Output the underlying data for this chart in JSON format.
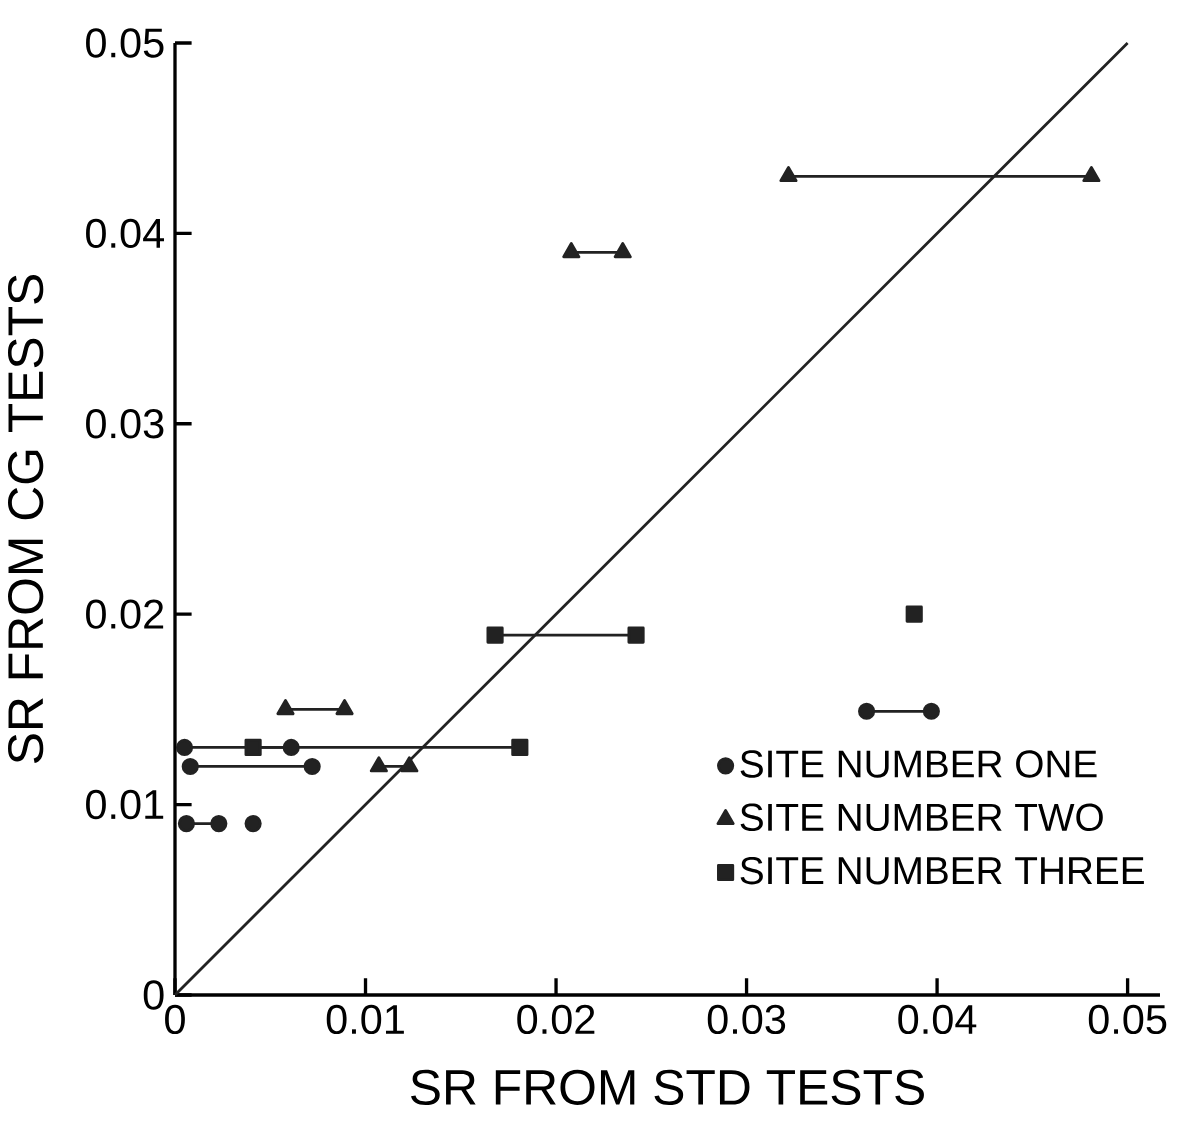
{
  "chart_data": {
    "type": "line",
    "xlabel": "SR FROM STD TESTS",
    "ylabel": "SR FROM CG TESTS",
    "xlim": [
      0,
      0.0517
    ],
    "ylim": [
      0,
      0.05
    ],
    "xticks": [
      0,
      0.01,
      0.02,
      0.03,
      0.04,
      0.05
    ],
    "yticks": [
      0,
      0.01,
      0.02,
      0.03,
      0.04,
      0.05
    ],
    "grid": false,
    "legend": "bottom right",
    "series": [
      {
        "name": "SITE NUMBER ONE",
        "color": "#222222",
        "marker": "circle",
        "x": [
          0.0005,
          0.0061,
          null,
          0.0008,
          0.0072,
          null,
          0.0006,
          0.0023,
          null,
          0.0041,
          null,
          0.0363,
          0.0397
        ],
        "values": [
          0.013,
          0.013,
          null,
          0.012,
          0.012,
          null,
          0.009,
          0.009,
          null,
          0.009,
          null,
          0.0149,
          0.0149
        ]
      },
      {
        "name": "SITE NUMBER TWO",
        "color": "#222222",
        "marker": "triangle",
        "x": [
          0.0322,
          0.0481,
          null,
          0.0208,
          0.0235,
          null,
          0.0058,
          0.0089,
          null,
          0.0107,
          0.0123
        ],
        "values": [
          0.043,
          0.043,
          null,
          0.039,
          0.039,
          null,
          0.015,
          0.015,
          null,
          0.012,
          0.012
        ]
      },
      {
        "name": "SITE NUMBER THREE",
        "color": "#222222",
        "marker": "square",
        "x": [
          0.0168,
          0.0242,
          null,
          0.0041,
          0.0181,
          null,
          0.0388
        ],
        "values": [
          0.0189,
          0.0189,
          null,
          0.013,
          0.013,
          null,
          0.02
        ]
      },
      {
        "color": "#222222",
        "marker": "none",
        "x": [
          0,
          0.05
        ],
        "values": [
          0,
          0.05
        ]
      }
    ]
  }
}
